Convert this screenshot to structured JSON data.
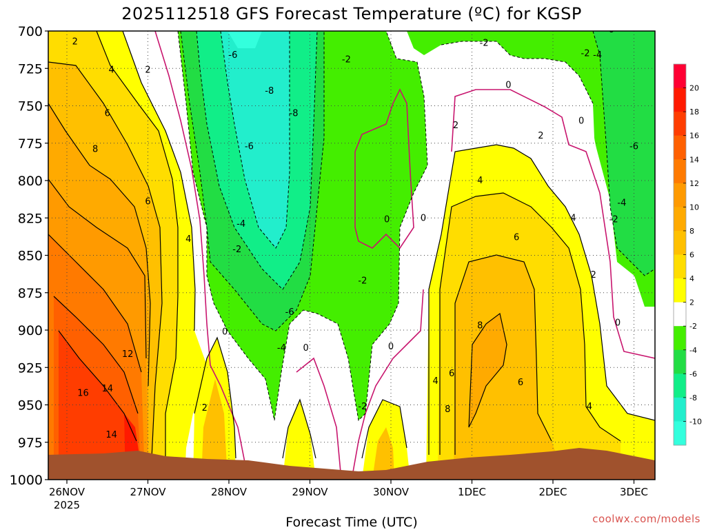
{
  "title": "2025112518 GFS Forecast Temperature (ºC) for KGSP",
  "credit": "coolwx.com/models",
  "chart_data": {
    "type": "heatmap",
    "title": "2025112518 GFS Forecast Temperature (ºC) for KGSP",
    "xlabel": "Forecast Time (UTC)",
    "ylabel": "",
    "x_ticks": [
      "26NOV",
      "27NOV",
      "28NOV",
      "29NOV",
      "30NOV",
      "1DEC",
      "2DEC",
      "3DEC"
    ],
    "x_sub_label": "2025",
    "y_ticks": [
      700,
      725,
      750,
      775,
      800,
      825,
      850,
      875,
      900,
      925,
      950,
      975,
      1000
    ],
    "ylim": [
      1000,
      700
    ],
    "y_scale": "pressure (hPa), inverted",
    "grid": true,
    "colorbar": {
      "labels": [
        "20",
        "18",
        "16",
        "14",
        "12",
        "10",
        "8",
        "6",
        "4",
        "2",
        "-2",
        "-4",
        "-6",
        "-8",
        "-10"
      ],
      "colors": [
        "#ff0033",
        "#ff1a00",
        "#ff3d00",
        "#ff6000",
        "#ff7a00",
        "#ff9a00",
        "#ffaa00",
        "#ffc000",
        "#ffdd00",
        "#ffff00",
        "#ffffff",
        "#44ee00",
        "#22dd44",
        "#11ee88",
        "#22eecc",
        "#33ffdd"
      ]
    },
    "colors": {
      "positive_contour": "#000000",
      "zero_contour": "#c8156e",
      "negative_contour": "#000000",
      "terrain": "#a0522d"
    },
    "contour_labels": [
      {
        "text": "2",
        "t": 0.1,
        "p": 708
      },
      {
        "text": "4",
        "t": 0.55,
        "p": 727
      },
      {
        "text": "2",
        "t": 1.0,
        "p": 727
      },
      {
        "text": "6",
        "t": 0.5,
        "p": 756
      },
      {
        "text": "8",
        "t": 0.35,
        "p": 780
      },
      {
        "text": "6",
        "t": 1.0,
        "p": 815
      },
      {
        "text": "4",
        "t": 1.5,
        "p": 840
      },
      {
        "text": "12",
        "t": 0.75,
        "p": 917
      },
      {
        "text": "16",
        "t": 0.2,
        "p": 943
      },
      {
        "text": "14",
        "t": 0.5,
        "p": 940
      },
      {
        "text": "14",
        "t": 0.55,
        "p": 971
      },
      {
        "text": "2",
        "t": 1.7,
        "p": 953
      },
      {
        "text": "0",
        "t": 1.95,
        "p": 902
      },
      {
        "text": "-6",
        "t": 2.05,
        "p": 717
      },
      {
        "text": "-8",
        "t": 2.5,
        "p": 741
      },
      {
        "text": "-8",
        "t": 2.8,
        "p": 756
      },
      {
        "text": "-6",
        "t": 2.25,
        "p": 778
      },
      {
        "text": "-4",
        "t": 2.15,
        "p": 830
      },
      {
        "text": "-2",
        "t": 2.1,
        "p": 847
      },
      {
        "text": "-6",
        "t": 2.75,
        "p": 889
      },
      {
        "text": "-4",
        "t": 2.65,
        "p": 913
      },
      {
        "text": "0",
        "t": 2.95,
        "p": 913
      },
      {
        "text": "-2",
        "t": 3.45,
        "p": 720
      },
      {
        "text": "0",
        "t": 3.95,
        "p": 827
      },
      {
        "text": "0",
        "t": 4.4,
        "p": 826
      },
      {
        "text": "-2",
        "t": 3.65,
        "p": 868
      },
      {
        "text": "0",
        "t": 4.0,
        "p": 912
      },
      {
        "text": "-2",
        "t": 3.65,
        "p": 952
      },
      {
        "text": "-2",
        "t": 5.15,
        "p": 709
      },
      {
        "text": "0",
        "t": 5.45,
        "p": 737
      },
      {
        "text": "2",
        "t": 4.8,
        "p": 764
      },
      {
        "text": "2",
        "t": 5.85,
        "p": 771
      },
      {
        "text": "0",
        "t": 6.35,
        "p": 761
      },
      {
        "text": "4",
        "t": 5.1,
        "p": 801
      },
      {
        "text": "6",
        "t": 5.55,
        "p": 839
      },
      {
        "text": "4",
        "t": 6.25,
        "p": 826
      },
      {
        "text": "2",
        "t": 6.5,
        "p": 864
      },
      {
        "text": "8",
        "t": 5.1,
        "p": 898
      },
      {
        "text": "4",
        "t": 4.55,
        "p": 935
      },
      {
        "text": "6",
        "t": 4.75,
        "p": 930
      },
      {
        "text": "8",
        "t": 4.7,
        "p": 954
      },
      {
        "text": "6",
        "t": 5.6,
        "p": 936
      },
      {
        "text": "4",
        "t": 6.45,
        "p": 952
      },
      {
        "text": "0",
        "t": 6.8,
        "p": 896
      },
      {
        "text": "-4",
        "t": 6.55,
        "p": 717
      },
      {
        "text": "-6",
        "t": 6.7,
        "p": 700
      },
      {
        "text": "-2",
        "t": 6.4,
        "p": 716
      },
      {
        "text": "-6",
        "t": 7.0,
        "p": 778
      },
      {
        "text": "-4",
        "t": 6.85,
        "p": 816
      },
      {
        "text": "-2",
        "t": 6.75,
        "p": 827
      }
    ]
  }
}
